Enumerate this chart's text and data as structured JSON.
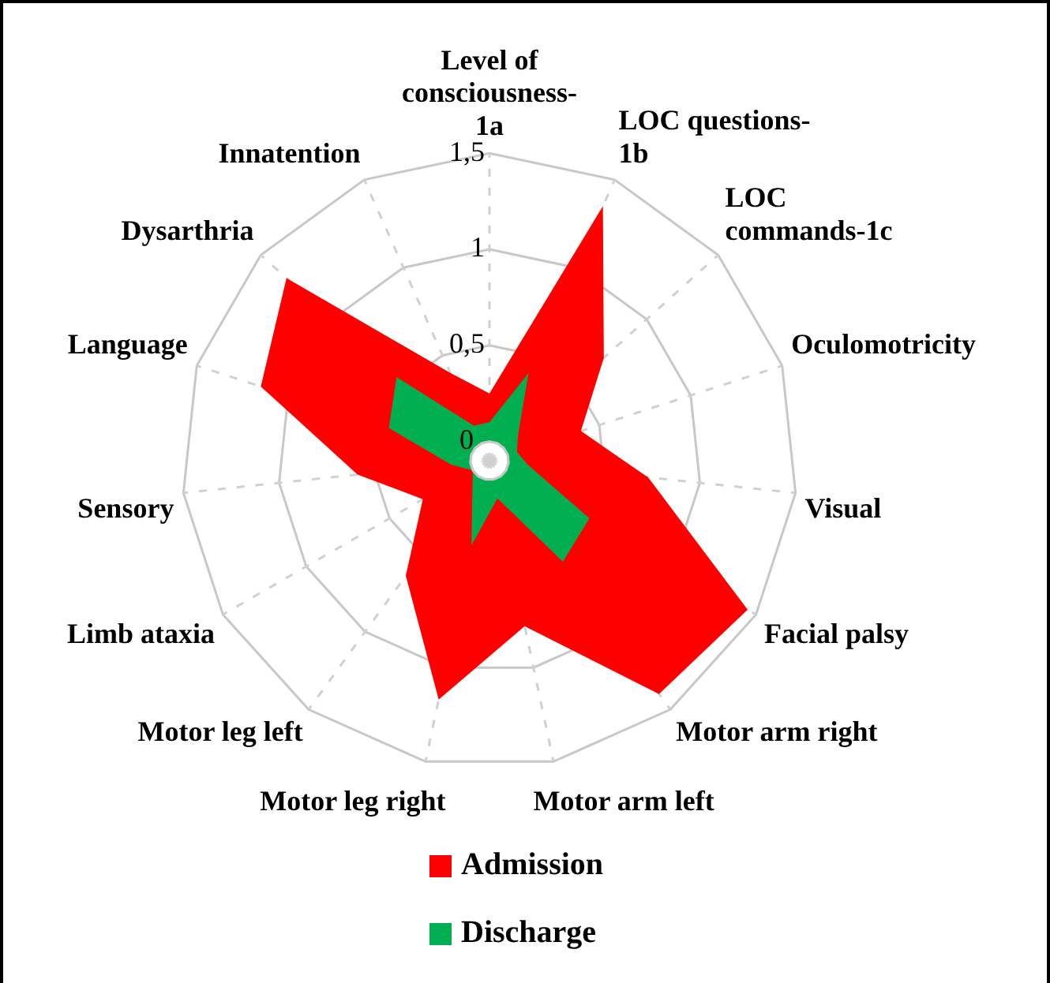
{
  "chart_data": {
    "type": "radar",
    "categories": [
      "Level of\nconsciousness-\n1a",
      "LOC questions-\n1b",
      "LOC\ncommands-1c",
      "Oculomotricity",
      "Visual",
      "Facial palsy",
      "Motor arm right",
      "Motor arm left",
      "Motor leg right",
      "Motor leg left",
      "Limb ataxia",
      "Sensory",
      "Language",
      "Dysarthria",
      "Innatention"
    ],
    "series": [
      {
        "name": "Admission",
        "color": "#ff0000",
        "values": [
          0.25,
          1.35,
          0.7,
          0.4,
          0.73,
          1.45,
          1.4,
          0.78,
          1.17,
          0.64,
          0.3,
          0.59,
          1.15,
          1.32,
          0.4
        ]
      },
      {
        "name": "Discharge",
        "color": "#00b050",
        "values": [
          0.1,
          0.4,
          0.1,
          0.05,
          0.1,
          0.5,
          0.55,
          0.1,
          0.35,
          0.05,
          0,
          0.1,
          0.45,
          0.55,
          0.1
        ]
      }
    ],
    "ylim": [
      -0.1,
      1.5
    ],
    "yticks": [
      0,
      {
        "value": 0.5,
        "label": "0,5"
      },
      1,
      {
        "value": 1.5,
        "label": "1,5"
      }
    ],
    "grid": true,
    "legend": "bottom",
    "marker": "none"
  }
}
